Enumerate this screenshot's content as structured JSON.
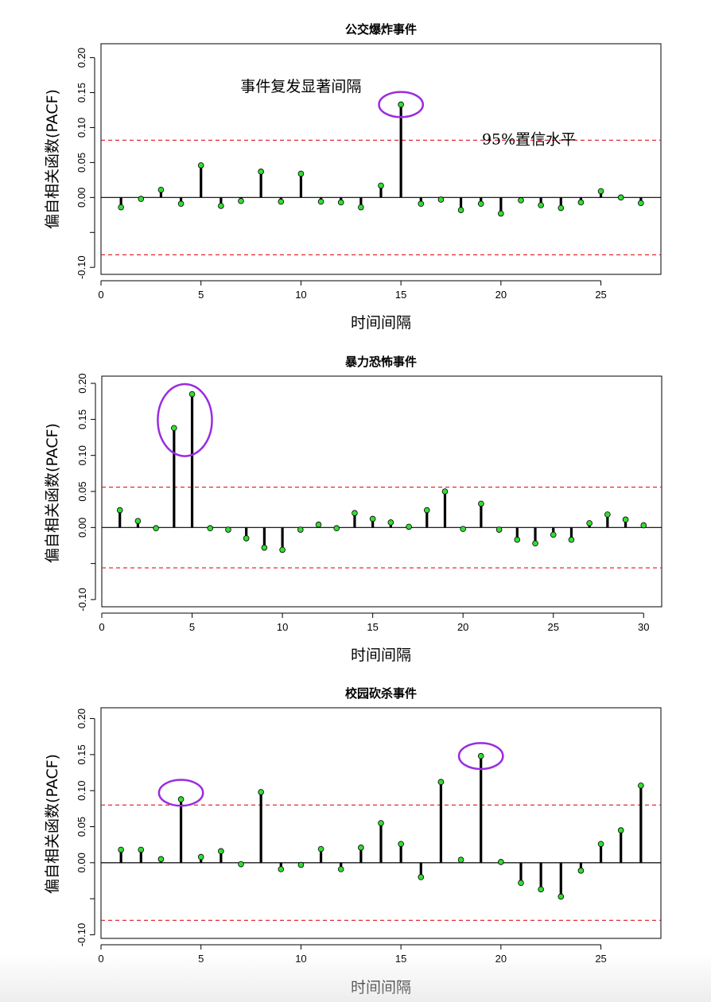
{
  "chart_data": [
    {
      "type": "stem",
      "title": "公交爆炸事件",
      "xlabel": "时间间隔",
      "ylabel": "偏自相关函数(PACF)",
      "xlim": [
        0,
        28
      ],
      "ylim": [
        -0.11,
        0.22
      ],
      "xticks": [
        0,
        5,
        10,
        15,
        20,
        25
      ],
      "xtick_labels": [
        "0",
        "5",
        "10",
        "15",
        "20",
        "25"
      ],
      "yticks": [
        -0.1,
        -0.05,
        0,
        0.05,
        0.1,
        0.15,
        0.2
      ],
      "ytick_labels": [
        "-0.10",
        "",
        "0.00",
        "0.05",
        "0.10",
        "0.15",
        "0.20"
      ],
      "confidence_upper": 0.082,
      "confidence_lower": -0.082,
      "x": [
        1,
        2,
        3,
        4,
        5,
        6,
        7,
        8,
        9,
        10,
        11,
        12,
        13,
        14,
        15,
        16,
        17,
        18,
        19,
        20,
        21,
        22,
        23,
        24,
        25,
        26,
        27
      ],
      "values": [
        -0.014,
        -0.002,
        0.011,
        -0.009,
        0.046,
        -0.012,
        -0.005,
        0.037,
        -0.006,
        0.034,
        -0.006,
        -0.007,
        -0.014,
        0.017,
        0.133,
        -0.009,
        -0.003,
        -0.018,
        -0.009,
        -0.023,
        -0.004,
        -0.011,
        -0.015,
        -0.007,
        0.009,
        0.0,
        -0.008
      ],
      "annotations": [
        {
          "text": "事件复发显著间隔",
          "x": 10.0,
          "y": 0.152
        },
        {
          "text": "95%置信水平",
          "x": 21.4,
          "y": 0.076
        }
      ],
      "highlights": [
        {
          "cx": 15.0,
          "cy": 0.133,
          "rx": 1.1,
          "ry": 0.018
        }
      ]
    },
    {
      "type": "stem",
      "title": "暴力恐怖事件",
      "xlabel": "时间间隔",
      "ylabel": "偏自相关函数(PACF)",
      "xlim": [
        0,
        31
      ],
      "ylim": [
        -0.11,
        0.21
      ],
      "xticks": [
        0,
        5,
        10,
        15,
        20,
        25,
        30
      ],
      "xtick_labels": [
        "0",
        "5",
        "10",
        "15",
        "20",
        "25",
        "30"
      ],
      "yticks": [
        -0.1,
        -0.05,
        0,
        0.05,
        0.1,
        0.15,
        0.2
      ],
      "ytick_labels": [
        "-0.10",
        "",
        "0.00",
        "0.05",
        "0.10",
        "0.15",
        "0.20"
      ],
      "confidence_upper": 0.056,
      "confidence_lower": -0.056,
      "x": [
        1,
        2,
        3,
        4,
        5,
        6,
        7,
        8,
        9,
        10,
        11,
        12,
        13,
        14,
        15,
        16,
        17,
        18,
        19,
        20,
        21,
        22,
        23,
        24,
        25,
        26,
        27,
        28,
        29,
        30
      ],
      "values": [
        0.024,
        0.009,
        -0.001,
        0.138,
        0.185,
        -0.001,
        -0.003,
        -0.015,
        -0.028,
        -0.031,
        -0.003,
        0.004,
        -0.001,
        0.02,
        0.012,
        0.007,
        0.001,
        0.024,
        0.05,
        -0.002,
        0.033,
        -0.003,
        -0.017,
        -0.022,
        -0.01,
        -0.017,
        0.006,
        0.018,
        0.011,
        0.003
      ],
      "annotations": [],
      "highlights": [
        {
          "cx": 4.6,
          "cy": 0.149,
          "rx": 1.5,
          "ry": 0.05
        }
      ]
    },
    {
      "type": "stem",
      "title": "校园砍杀事件",
      "xlabel": "时间间隔",
      "ylabel": "偏自相关函数(PACF)",
      "xlim": [
        0,
        28
      ],
      "ylim": [
        -0.105,
        0.215
      ],
      "xticks": [
        0,
        5,
        10,
        15,
        20,
        25
      ],
      "xtick_labels": [
        "0",
        "5",
        "10",
        "15",
        "20",
        "25"
      ],
      "yticks": [
        -0.1,
        -0.05,
        0,
        0.05,
        0.1,
        0.15,
        0.2
      ],
      "ytick_labels": [
        "-0.10",
        "",
        "0.00",
        "0.05",
        "0.10",
        "0.15",
        "0.20"
      ],
      "confidence_upper": 0.08,
      "confidence_lower": -0.08,
      "x": [
        1,
        2,
        3,
        4,
        5,
        6,
        7,
        8,
        9,
        10,
        11,
        12,
        13,
        14,
        15,
        16,
        17,
        18,
        19,
        20,
        21,
        22,
        23,
        24,
        25,
        26,
        27
      ],
      "values": [
        0.018,
        0.018,
        0.005,
        0.088,
        0.008,
        0.016,
        -0.002,
        0.098,
        -0.009,
        -0.003,
        0.019,
        -0.009,
        0.021,
        0.055,
        0.026,
        -0.02,
        0.112,
        0.004,
        0.148,
        0.001,
        -0.028,
        -0.037,
        -0.047,
        -0.011,
        0.026,
        0.045,
        0.107
      ],
      "annotations": [],
      "highlights": [
        {
          "cx": 4.0,
          "cy": 0.097,
          "rx": 1.1,
          "ry": 0.018
        },
        {
          "cx": 19.0,
          "cy": 0.148,
          "rx": 1.1,
          "ry": 0.018
        }
      ]
    }
  ],
  "colors": {
    "stem": "#000000",
    "point_fill": "#33dd33",
    "confidence": "#e0161e",
    "highlight": "#9b2be0",
    "frame": "#000000"
  }
}
